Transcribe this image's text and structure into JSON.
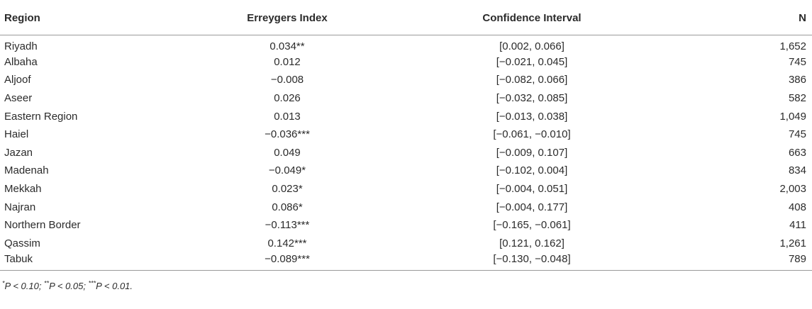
{
  "table": {
    "headers": [
      "Region",
      "Erreygers Index",
      "Confidence Interval",
      "N"
    ],
    "rows": [
      {
        "region": "Riyadh",
        "index": "0.034**",
        "ci": "[0.002, 0.066]",
        "n": "1,652"
      },
      {
        "region": "Albaha",
        "index": "0.012",
        "ci": "[−0.021, 0.045]",
        "n": "745"
      },
      {
        "region": "Aljoof",
        "index": "−0.008",
        "ci": "[−0.082, 0.066]",
        "n": "386"
      },
      {
        "region": "Aseer",
        "index": "0.026",
        "ci": "[−0.032, 0.085]",
        "n": "582"
      },
      {
        "region": "Eastern Region",
        "index": "0.013",
        "ci": "[−0.013, 0.038]",
        "n": "1,049"
      },
      {
        "region": "Haiel",
        "index": "−0.036***",
        "ci": "[−0.061, −0.010]",
        "n": "745"
      },
      {
        "region": "Jazan",
        "index": "0.049",
        "ci": "[−0.009, 0.107]",
        "n": "663"
      },
      {
        "region": "Madenah",
        "index": "−0.049*",
        "ci": "[−0.102, 0.004]",
        "n": "834"
      },
      {
        "region": "Mekkah",
        "index": "0.023*",
        "ci": "[−0.004, 0.051]",
        "n": "2,003"
      },
      {
        "region": "Najran",
        "index": "0.086*",
        "ci": "[−0.004, 0.177]",
        "n": "408"
      },
      {
        "region": "Northern Border",
        "index": "−0.113***",
        "ci": "[−0.165, −0.061]",
        "n": "411"
      },
      {
        "region": "Qassim",
        "index": "0.142***",
        "ci": "[0.121, 0.162]",
        "n": "1,261"
      },
      {
        "region": "Tabuk",
        "index": "−0.089***",
        "ci": "[−0.130, −0.048]",
        "n": "789"
      }
    ]
  },
  "footnote": {
    "parts": [
      {
        "sup": "*",
        "text": "P < 0.10; "
      },
      {
        "sup": "**",
        "text": "P < 0.05; "
      },
      {
        "sup": "***",
        "text": "P < 0.01."
      }
    ]
  }
}
